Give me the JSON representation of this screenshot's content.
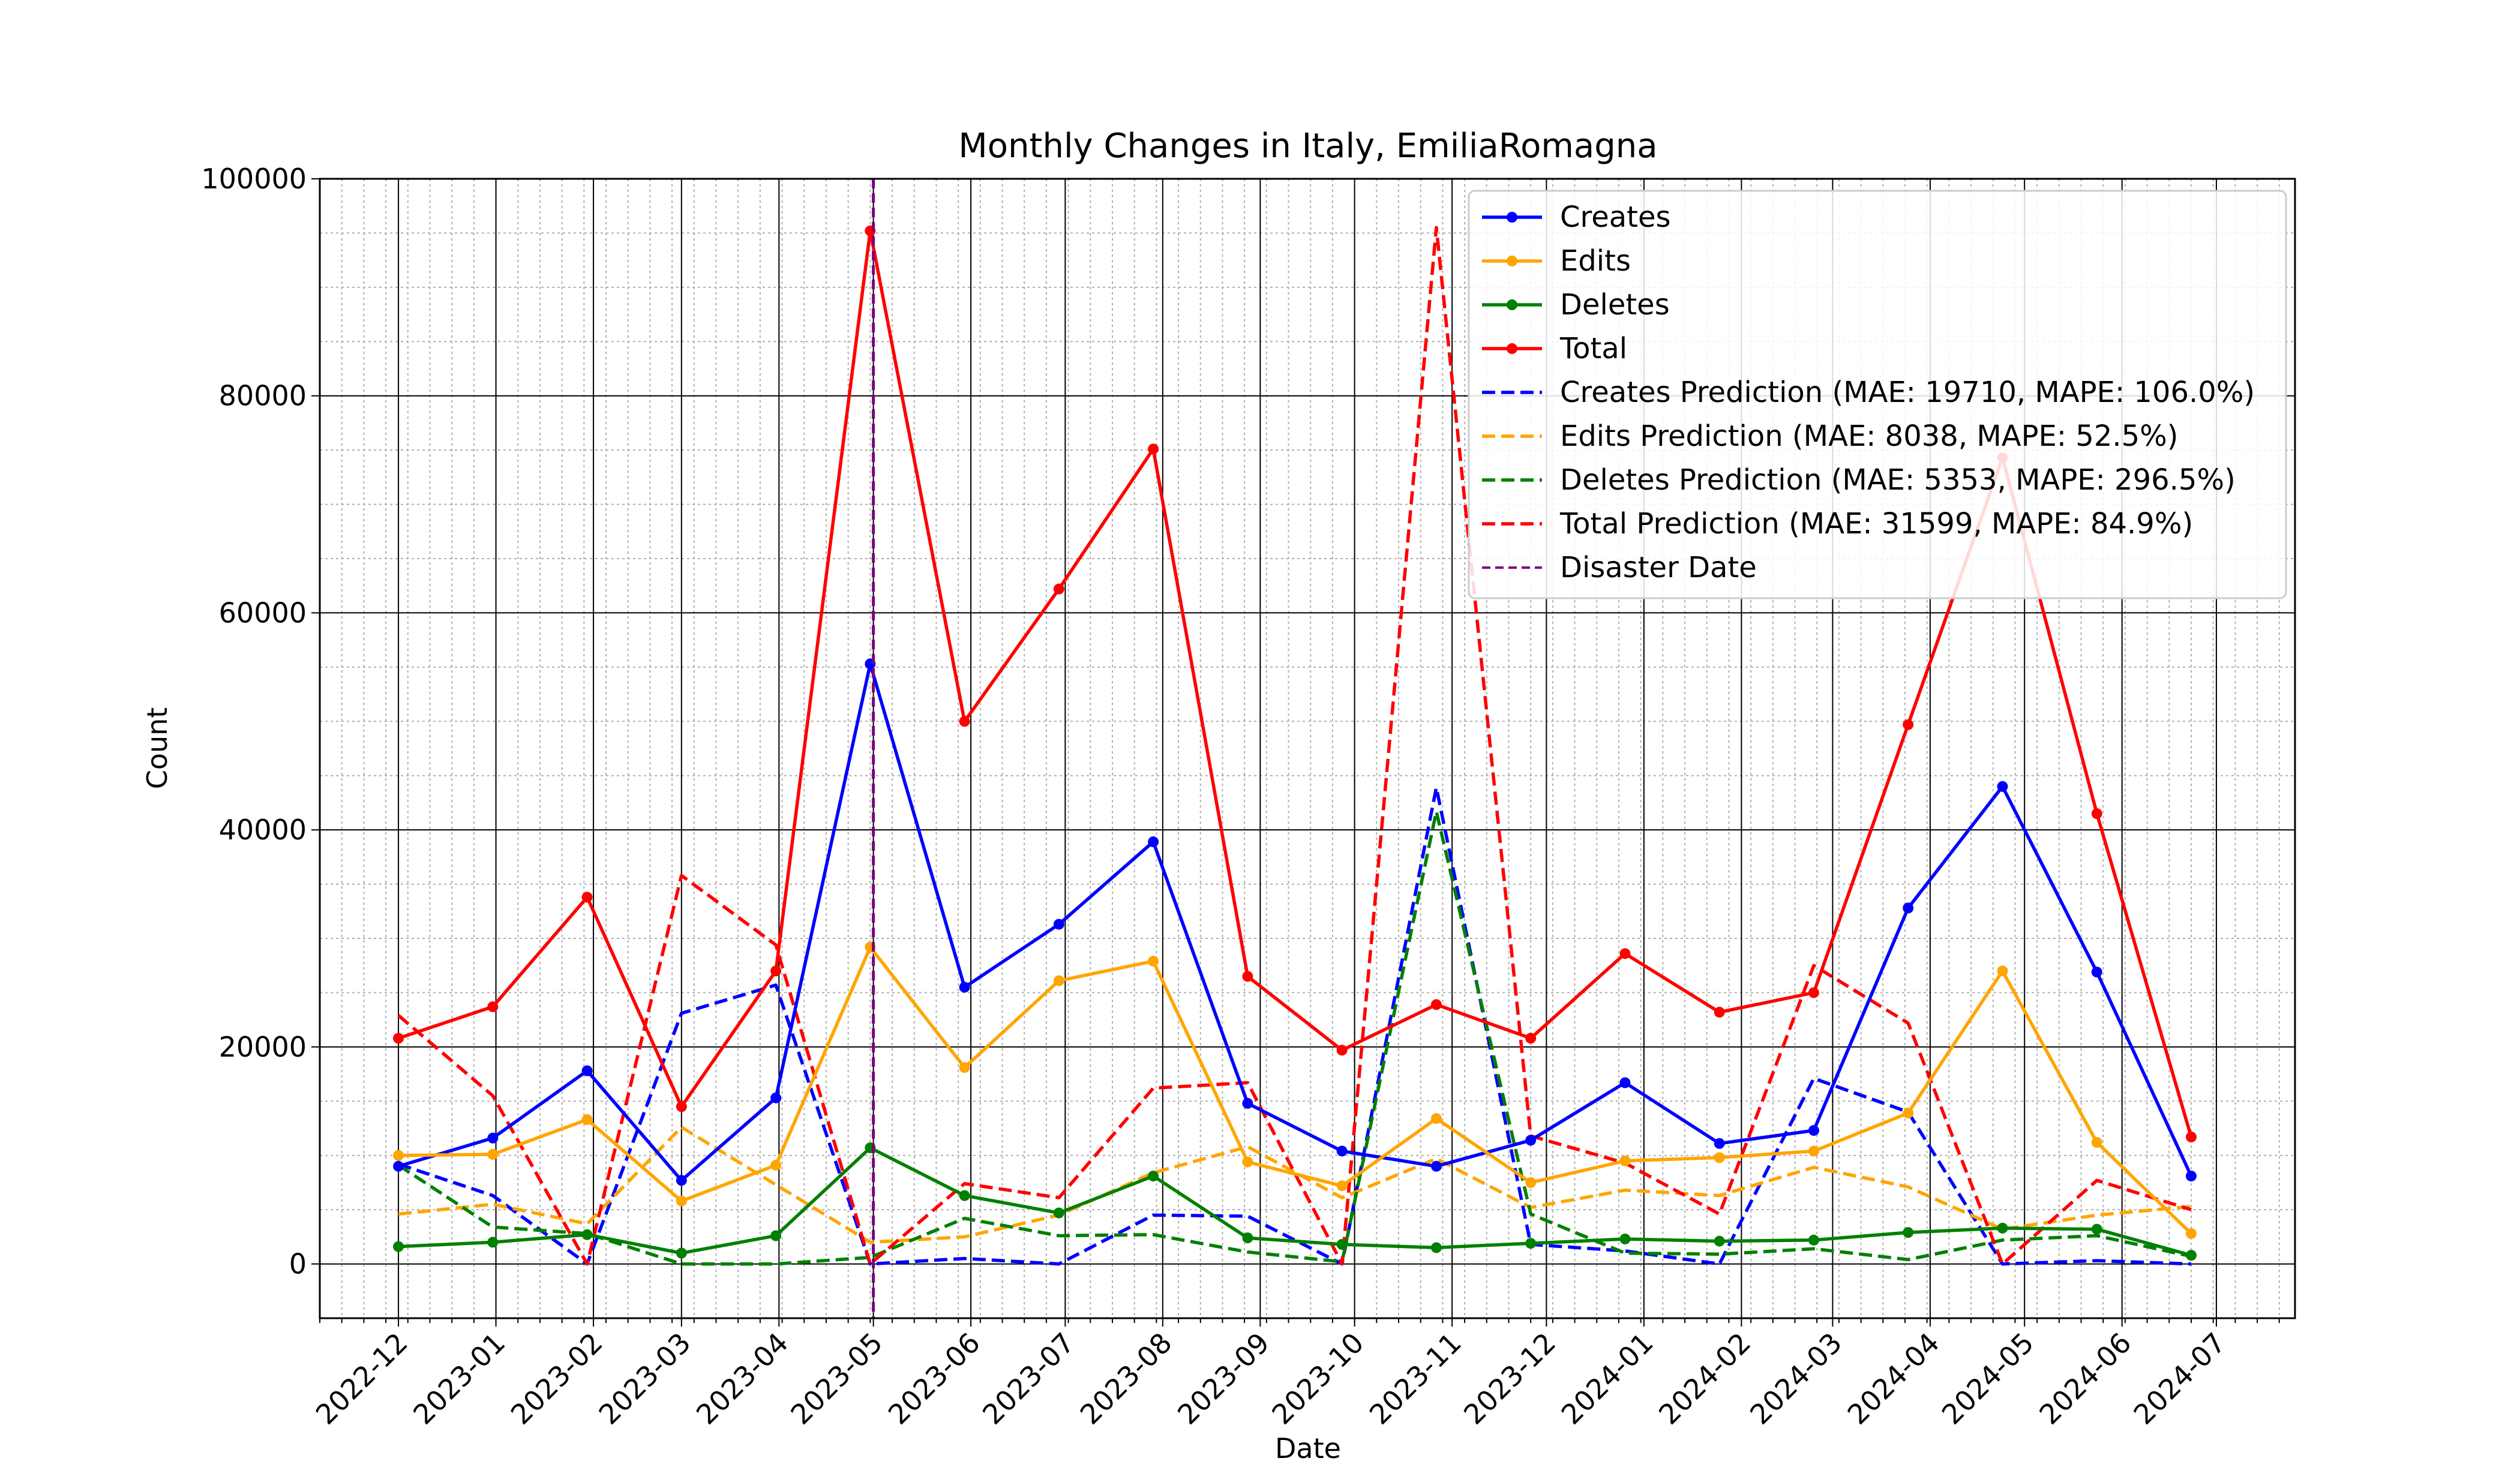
{
  "chart_data": {
    "type": "line",
    "title": "Monthly Changes in Italy, EmiliaRomagna",
    "xlabel": "Date",
    "ylabel": "Count",
    "ylim": [
      -5000,
      100000
    ],
    "y_ticks": [
      0,
      20000,
      40000,
      60000,
      80000,
      100000
    ],
    "x_range": [
      "2022-11-06",
      "2024-07-26"
    ],
    "x_ticks": [
      "2022-12",
      "2023-01",
      "2023-02",
      "2023-03",
      "2023-04",
      "2023-05",
      "2023-06",
      "2023-07",
      "2023-08",
      "2023-09",
      "2023-10",
      "2023-11",
      "2023-12",
      "2024-01",
      "2024-02",
      "2024-03",
      "2024-04",
      "2024-05",
      "2024-06",
      "2024-07"
    ],
    "grid": "major and minor",
    "legend_position": "top-right",
    "x": [
      "2022-12-01",
      "2022-12-31",
      "2023-01-30",
      "2023-03-01",
      "2023-03-31",
      "2023-04-30",
      "2023-05-30",
      "2023-06-29",
      "2023-07-29",
      "2023-08-28",
      "2023-09-27",
      "2023-10-27",
      "2023-11-26",
      "2023-12-26",
      "2024-01-25",
      "2024-02-24",
      "2024-03-25",
      "2024-04-24",
      "2024-05-24",
      "2024-06-23"
    ],
    "series": [
      {
        "name": "Creates",
        "style": "solid-marker",
        "color": "#0000ff",
        "values": [
          9000,
          11600,
          17800,
          7700,
          15300,
          55300,
          25500,
          31300,
          38900,
          14800,
          10400,
          9000,
          11400,
          16700,
          11100,
          12300,
          32800,
          44000,
          26900,
          8100
        ]
      },
      {
        "name": "Edits",
        "style": "solid-marker",
        "color": "#ffa500",
        "values": [
          10000,
          10100,
          13300,
          5800,
          9100,
          29200,
          18100,
          26100,
          27900,
          9400,
          7200,
          13400,
          7500,
          9500,
          9800,
          10400,
          13900,
          27000,
          11200,
          2800
        ]
      },
      {
        "name": "Deletes",
        "style": "solid-marker",
        "color": "#008000",
        "values": [
          1600,
          2000,
          2700,
          1000,
          2600,
          10700,
          6300,
          4700,
          8100,
          2400,
          1800,
          1500,
          1900,
          2300,
          2100,
          2200,
          2900,
          3300,
          3200,
          800
        ]
      },
      {
        "name": "Total",
        "style": "solid-marker",
        "color": "#ff0000",
        "values": [
          20800,
          23700,
          33800,
          14500,
          27000,
          95200,
          50000,
          62200,
          75100,
          26500,
          19700,
          23900,
          20800,
          28600,
          23200,
          25000,
          49700,
          74300,
          41500,
          11700
        ]
      },
      {
        "name": "Creates Prediction (MAE: 19710, MAPE: 106.0%)",
        "style": "dashed",
        "color": "#0000ff",
        "values": [
          9200,
          6300,
          0,
          23100,
          25700,
          0,
          500,
          0,
          4500,
          4400,
          0,
          43900,
          1800,
          1200,
          0,
          17100,
          14000,
          0,
          300,
          0
        ]
      },
      {
        "name": "Edits Prediction (MAE: 8038, MAPE: 52.5%)",
        "style": "dashed",
        "color": "#ffa500",
        "values": [
          4600,
          5500,
          3700,
          12600,
          7300,
          2000,
          2500,
          4500,
          8400,
          10800,
          6100,
          9700,
          5200,
          6800,
          6300,
          8900,
          7100,
          3200,
          4500,
          5300
        ]
      },
      {
        "name": "Deletes Prediction (MAE: 5353, MAPE: 296.5%)",
        "style": "dashed",
        "color": "#008000",
        "values": [
          9100,
          3400,
          2800,
          0,
          0,
          600,
          4200,
          2600,
          2700,
          1100,
          200,
          41700,
          4600,
          1000,
          900,
          1400,
          400,
          2200,
          2600,
          700
        ]
      },
      {
        "name": "Total Prediction (MAE: 31599, MAPE: 84.9%)",
        "style": "dashed",
        "color": "#ff0000",
        "values": [
          22900,
          15500,
          0,
          35800,
          29400,
          0,
          7400,
          6100,
          16200,
          16700,
          0,
          95500,
          11800,
          9300,
          4600,
          27500,
          22200,
          0,
          7700,
          5000
        ]
      }
    ],
    "disaster_date": {
      "name": "Disaster Date",
      "x": "2023-05-01",
      "color": "#800080"
    }
  }
}
